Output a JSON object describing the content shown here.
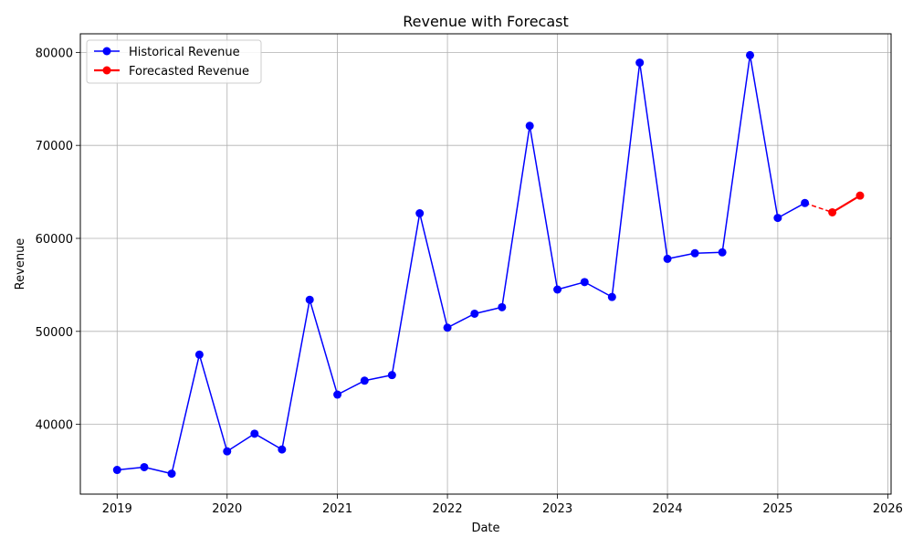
{
  "chart_data": {
    "type": "line",
    "title": "Revenue with Forecast",
    "xlabel": "Date",
    "ylabel": "Revenue",
    "x_ticks": [
      "2019",
      "2020",
      "2021",
      "2022",
      "2023",
      "2024",
      "2025",
      "2026"
    ],
    "y_ticks": [
      "40000",
      "50000",
      "60000",
      "70000",
      "80000"
    ],
    "xlim": [
      "2018-09-01",
      "2026-01-12"
    ],
    "ylim": [
      32500,
      82000
    ],
    "grid": true,
    "legend_position": "upper-left",
    "series": [
      {
        "name": "Historical Revenue",
        "color": "#0000ff",
        "line_style": "solid",
        "marker": "circle",
        "points": [
          {
            "date": "2019-01-01",
            "value": 35100
          },
          {
            "date": "2019-04-01",
            "value": 35400
          },
          {
            "date": "2019-07-01",
            "value": 34700
          },
          {
            "date": "2019-10-01",
            "value": 47500
          },
          {
            "date": "2020-01-01",
            "value": 37100
          },
          {
            "date": "2020-04-01",
            "value": 39000
          },
          {
            "date": "2020-07-01",
            "value": 37300
          },
          {
            "date": "2020-10-01",
            "value": 53400
          },
          {
            "date": "2021-01-01",
            "value": 43200
          },
          {
            "date": "2021-04-01",
            "value": 44700
          },
          {
            "date": "2021-07-01",
            "value": 45300
          },
          {
            "date": "2021-10-01",
            "value": 62700
          },
          {
            "date": "2022-01-01",
            "value": 50400
          },
          {
            "date": "2022-04-01",
            "value": 51900
          },
          {
            "date": "2022-07-01",
            "value": 52600
          },
          {
            "date": "2022-10-01",
            "value": 72100
          },
          {
            "date": "2023-01-01",
            "value": 54500
          },
          {
            "date": "2023-04-01",
            "value": 55300
          },
          {
            "date": "2023-07-01",
            "value": 53700
          },
          {
            "date": "2023-10-01",
            "value": 78900
          },
          {
            "date": "2024-01-01",
            "value": 57800
          },
          {
            "date": "2024-04-01",
            "value": 58400
          },
          {
            "date": "2024-07-01",
            "value": 58500
          },
          {
            "date": "2024-10-01",
            "value": 79700
          },
          {
            "date": "2025-01-01",
            "value": 62200
          },
          {
            "date": "2025-04-01",
            "value": 63800
          }
        ]
      },
      {
        "name": "Forecasted Revenue",
        "color": "#ff0000",
        "line_style": "solid",
        "marker": "circle",
        "points": [
          {
            "date": "2025-07-01",
            "value": 62800
          },
          {
            "date": "2025-10-01",
            "value": 64600
          }
        ]
      }
    ],
    "connector": {
      "color": "#ff0000",
      "line_style": "dashed",
      "from": {
        "date": "2025-04-01",
        "value": 63800
      },
      "to": {
        "date": "2025-07-01",
        "value": 62800
      }
    }
  }
}
